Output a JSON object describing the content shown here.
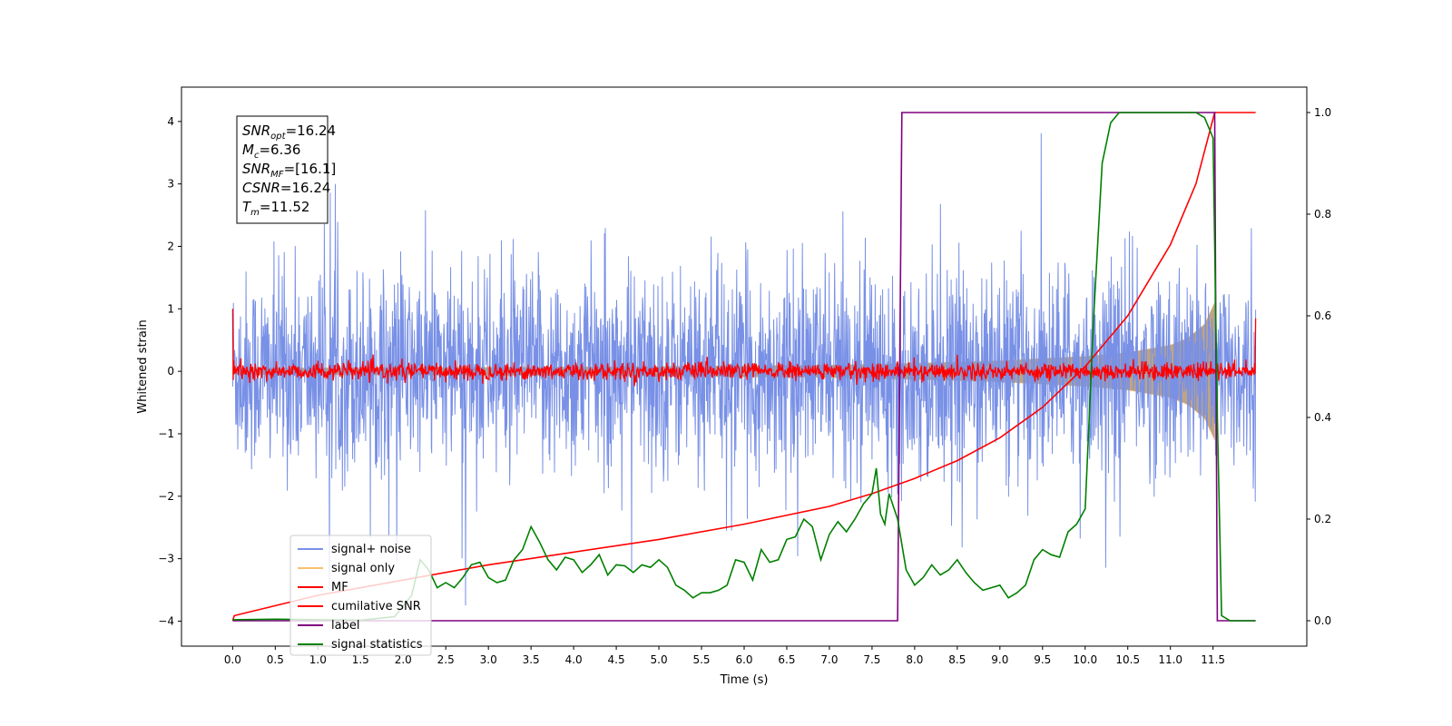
{
  "chart_data": {
    "type": "line",
    "xlabel": "Time (s)",
    "ylabel": "Whitened strain",
    "xlim": [
      -0.6,
      12.6
    ],
    "ylim": [
      -4.4,
      4.55
    ],
    "y2lim": [
      -0.05,
      1.05
    ],
    "xticks": [
      0.0,
      0.5,
      1.0,
      1.5,
      2.0,
      2.5,
      3.0,
      3.5,
      4.0,
      4.5,
      5.0,
      5.5,
      6.0,
      6.5,
      7.0,
      7.5,
      8.0,
      8.5,
      9.0,
      9.5,
      10.0,
      10.5,
      11.0,
      11.5
    ],
    "yticks": [
      -4,
      -3,
      -2,
      -1,
      0,
      1,
      2,
      3,
      4
    ],
    "y2ticks": [
      0.0,
      0.2,
      0.4,
      0.6,
      0.8,
      1.0
    ],
    "grid": false,
    "legend_position": "lower-left",
    "annotation": {
      "lines": [
        {
          "base": "SNR",
          "sub": "opt",
          "rest": "=16.24"
        },
        {
          "base": "M",
          "sub": "c",
          "rest": "=6.36"
        },
        {
          "base": "SNR",
          "sub": "MF",
          "rest": "=[16.1]"
        },
        {
          "base": "CSNR",
          "sub": "",
          "rest": "=16.24"
        },
        {
          "base": "T",
          "sub": "m",
          "rest": "=11.52"
        }
      ]
    },
    "series": [
      {
        "name": "signal+ noise",
        "color": "#7890e6",
        "axis": "left",
        "amplitude_envelope": {
          "x": [
            0.0,
            11.52,
            12.0
          ],
          "y": [
            0.75,
            0.75,
            0.75
          ]
        },
        "peak_max": 3.88,
        "peak_min": -3.75
      },
      {
        "name": "signal only",
        "color": "#f5c16e",
        "fill": "#b89a75",
        "axis": "left",
        "envelope": {
          "x": [
            0.0,
            2.0,
            4.0,
            6.0,
            7.0,
            8.0,
            9.0,
            10.0,
            10.5,
            11.0,
            11.2,
            11.4,
            11.52
          ],
          "y": [
            0.05,
            0.06,
            0.07,
            0.09,
            0.1,
            0.13,
            0.17,
            0.24,
            0.3,
            0.42,
            0.53,
            0.75,
            1.1
          ]
        }
      },
      {
        "name": "MF",
        "color": "#ff0000",
        "axis": "left",
        "start": 1.0,
        "noise": 0.07,
        "end": 0.85
      },
      {
        "name": "cumilative SNR",
        "color": "#ff0000",
        "axis": "right",
        "x": [
          0.0,
          0.02,
          1.0,
          2.0,
          3.0,
          4.0,
          5.0,
          6.0,
          7.0,
          7.5,
          8.0,
          8.5,
          9.0,
          9.5,
          10.0,
          10.5,
          11.0,
          11.3,
          11.52,
          12.0
        ],
        "y": [
          0.0,
          0.01,
          0.05,
          0.08,
          0.11,
          0.135,
          0.16,
          0.19,
          0.225,
          0.25,
          0.28,
          0.315,
          0.36,
          0.42,
          0.5,
          0.6,
          0.74,
          0.86,
          1.0,
          1.0
        ]
      },
      {
        "name": "label",
        "color": "#800080",
        "axis": "right",
        "x": [
          0.0,
          7.8,
          7.85,
          11.52,
          11.55,
          12.0
        ],
        "y": [
          0.0,
          0.0,
          1.0,
          1.0,
          0.0,
          0.0
        ]
      },
      {
        "name": "signal statistics",
        "color": "#008000",
        "axis": "right",
        "x": [
          0.0,
          0.5,
          1.0,
          1.5,
          1.9,
          2.1,
          2.2,
          2.3,
          2.4,
          2.5,
          2.6,
          2.7,
          2.8,
          2.9,
          3.0,
          3.1,
          3.2,
          3.3,
          3.4,
          3.5,
          3.6,
          3.7,
          3.8,
          3.9,
          4.0,
          4.1,
          4.2,
          4.3,
          4.4,
          4.5,
          4.6,
          4.7,
          4.8,
          4.9,
          5.0,
          5.1,
          5.2,
          5.3,
          5.4,
          5.5,
          5.6,
          5.7,
          5.8,
          5.9,
          6.0,
          6.1,
          6.2,
          6.3,
          6.4,
          6.5,
          6.6,
          6.7,
          6.8,
          6.9,
          7.0,
          7.1,
          7.2,
          7.3,
          7.4,
          7.5,
          7.55,
          7.6,
          7.65,
          7.7,
          7.8,
          7.9,
          8.0,
          8.1,
          8.2,
          8.3,
          8.4,
          8.5,
          8.6,
          8.7,
          8.8,
          8.9,
          9.0,
          9.1,
          9.2,
          9.3,
          9.4,
          9.5,
          9.6,
          9.7,
          9.8,
          9.9,
          10.0,
          10.1,
          10.2,
          10.3,
          10.4,
          10.5,
          11.0,
          11.3,
          11.4,
          11.5,
          11.55,
          11.6,
          11.7,
          12.0
        ],
        "y": [
          0.002,
          0.003,
          0.002,
          0.001,
          0.008,
          0.05,
          0.12,
          0.1,
          0.065,
          0.075,
          0.065,
          0.085,
          0.11,
          0.115,
          0.085,
          0.075,
          0.08,
          0.12,
          0.14,
          0.185,
          0.155,
          0.12,
          0.1,
          0.125,
          0.12,
          0.095,
          0.11,
          0.13,
          0.09,
          0.11,
          0.108,
          0.095,
          0.11,
          0.105,
          0.12,
          0.105,
          0.07,
          0.06,
          0.045,
          0.055,
          0.055,
          0.06,
          0.07,
          0.12,
          0.115,
          0.08,
          0.14,
          0.115,
          0.12,
          0.16,
          0.165,
          0.2,
          0.185,
          0.12,
          0.17,
          0.195,
          0.175,
          0.2,
          0.23,
          0.25,
          0.3,
          0.21,
          0.19,
          0.25,
          0.2,
          0.1,
          0.07,
          0.085,
          0.11,
          0.09,
          0.1,
          0.12,
          0.095,
          0.075,
          0.06,
          0.065,
          0.07,
          0.045,
          0.055,
          0.07,
          0.12,
          0.14,
          0.13,
          0.125,
          0.175,
          0.19,
          0.22,
          0.6,
          0.9,
          0.98,
          1.0,
          1.0,
          1.0,
          1.0,
          0.99,
          0.95,
          0.4,
          0.01,
          0.0,
          0.0
        ]
      }
    ]
  }
}
